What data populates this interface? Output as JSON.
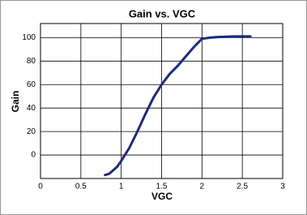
{
  "chart_data": {
    "type": "line",
    "title": "Gain vs. VGC",
    "x_label": "VGC",
    "y_label": "Gain",
    "x": [
      0.8,
      0.85,
      0.9,
      0.95,
      1.0,
      1.1,
      1.2,
      1.3,
      1.4,
      1.5,
      1.6,
      1.7,
      1.8,
      1.9,
      2.0,
      2.1,
      2.2,
      2.4,
      2.6
    ],
    "series": [
      {
        "name": "Gain",
        "color": "#1c2b7d",
        "values": [
          -17,
          -16,
          -13,
          -10,
          -5,
          6,
          20,
          35,
          49,
          60,
          69,
          76,
          84,
          92,
          99,
          100,
          100.5,
          101,
          101
        ]
      }
    ],
    "xlim": [
      0,
      3
    ],
    "xticks": [
      0,
      0.5,
      1,
      1.5,
      2,
      2.5,
      3
    ],
    "ylim": [
      -20,
      112
    ],
    "yticks": [
      0,
      20,
      40,
      60,
      80,
      100
    ],
    "grid": true
  }
}
